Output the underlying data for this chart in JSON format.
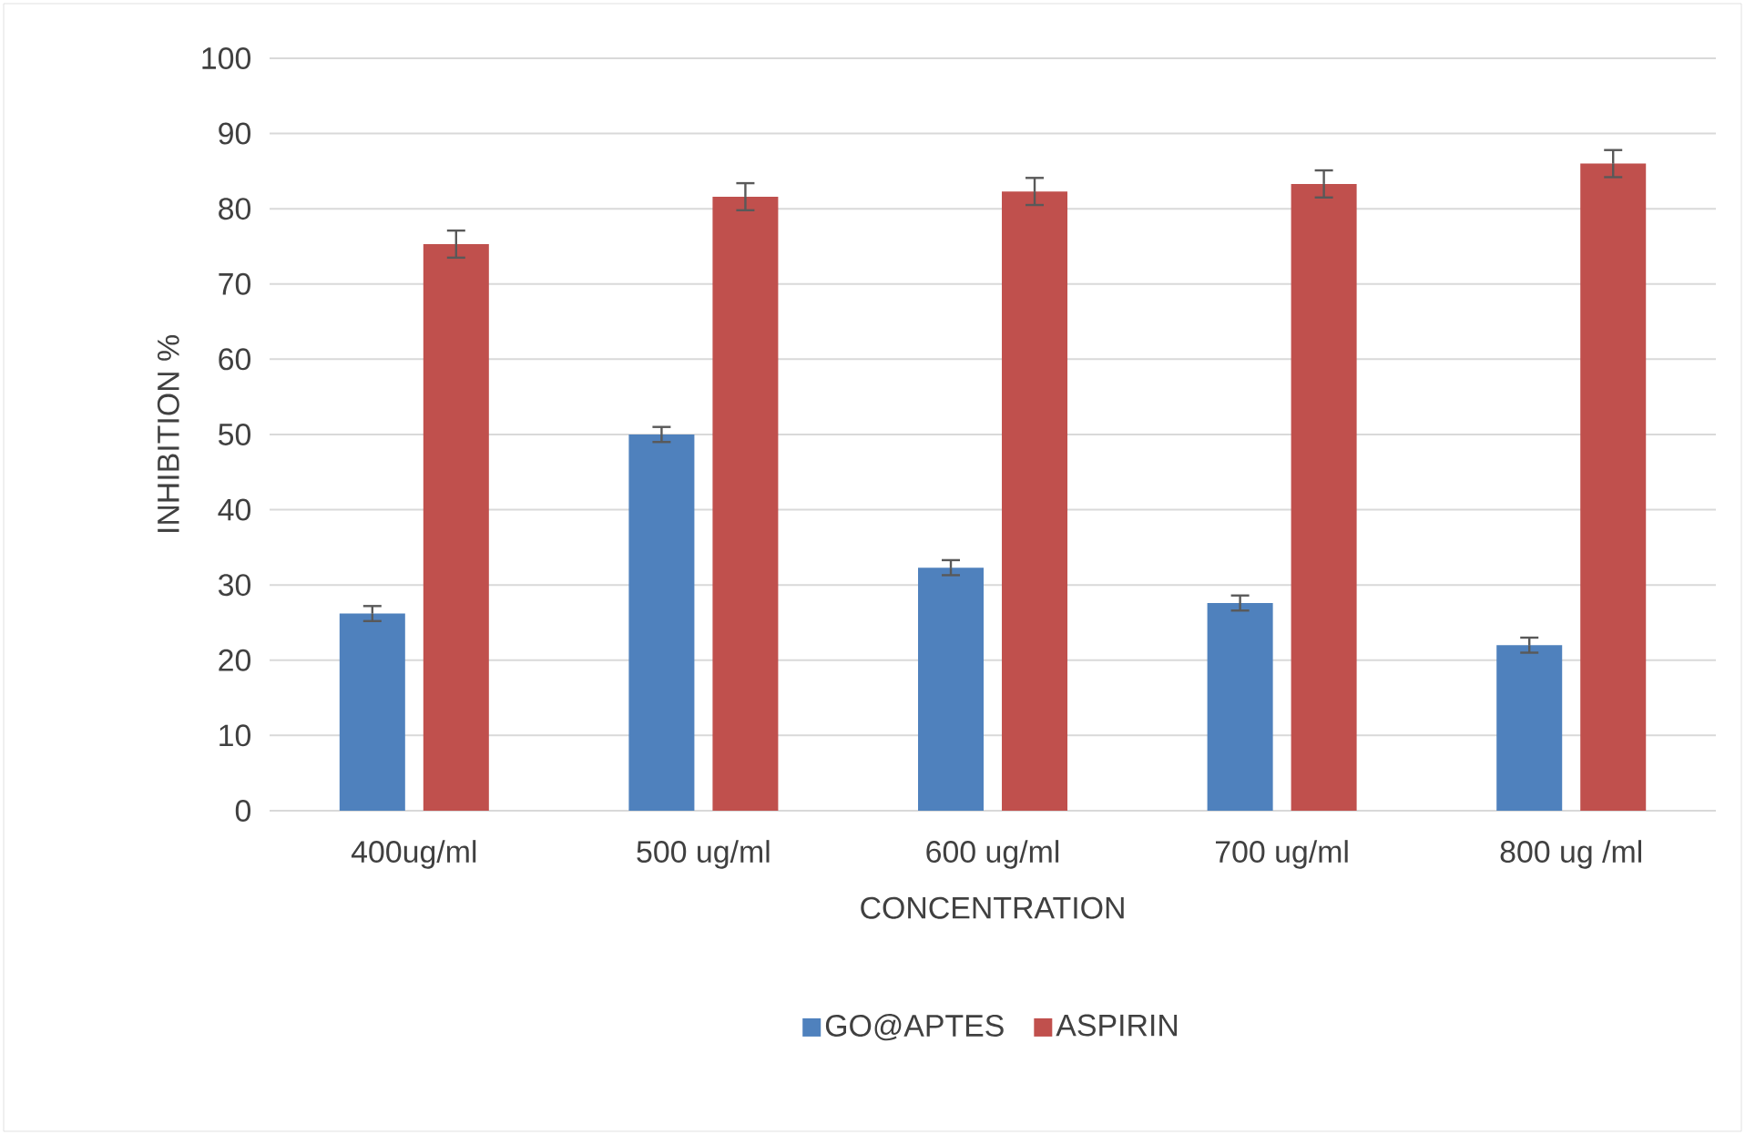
{
  "chart_data": {
    "type": "bar",
    "xlabel": "CONCENTRATION",
    "ylabel": "INHIBITION %",
    "categories": [
      "400ug/ml",
      "500 ug/ml",
      "600 ug/ml",
      "700 ug/ml",
      "800 ug /ml"
    ],
    "series": [
      {
        "name": "GO@APTES",
        "color": "#4f81bd",
        "values": [
          26.2,
          50.0,
          32.3,
          27.6,
          22.0
        ],
        "errors": [
          1,
          1,
          1,
          1,
          1
        ]
      },
      {
        "name": "ASPIRIN",
        "color": "#c0504d",
        "values": [
          75.3,
          81.6,
          82.3,
          83.3,
          86.0
        ],
        "errors": [
          1.8,
          1.8,
          1.8,
          1.8,
          1.8
        ]
      }
    ],
    "ylim": [
      0,
      100
    ],
    "yticks": [
      0,
      10,
      20,
      30,
      40,
      50,
      60,
      70,
      80,
      90,
      100
    ],
    "grid": "y",
    "legend": "bottom"
  }
}
